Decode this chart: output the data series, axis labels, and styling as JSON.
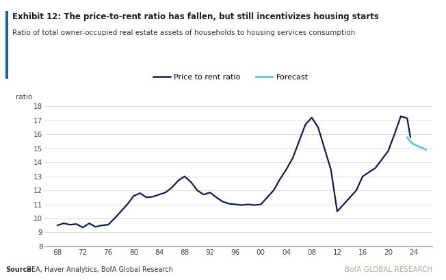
{
  "title_bold": "Exhibit 12: The price-to-rent ratio has fallen, but still incentivizes housing starts",
  "subtitle": "Ratio of total owner-occupied real estate assets of households to housing services consumption",
  "ylabel": "ratio",
  "ylim": [
    8,
    18
  ],
  "yticks": [
    8,
    9,
    10,
    11,
    12,
    13,
    14,
    15,
    16,
    17,
    18
  ],
  "xtick_labels": [
    "68",
    "72",
    "76",
    "80",
    "84",
    "88",
    "92",
    "96",
    "00",
    "04",
    "08",
    "12",
    "16",
    "20",
    "24"
  ],
  "source_bold": "Source:",
  "source_rest": " BEA, Haver Analytics, BofA Global Research",
  "watermark": "BofA GLOBAL RESEARCH",
  "legend_items": [
    "Price to rent ratio",
    "Forecast"
  ],
  "line_color": "#0d1952",
  "forecast_color": "#5bc8e8",
  "background_color": "#ffffff",
  "title_color": "#1a1a1a",
  "subtitle_color": "#333333",
  "blue_bar_color": "#1a5fa8",
  "axis_color": "#888888",
  "grid_color": "#d0d0d0",
  "source_color": "#333333",
  "watermark_color": "#b0a898",
  "price_to_rent_x": [
    68,
    69,
    70,
    71,
    72,
    73,
    74,
    75,
    76,
    77,
    78,
    79,
    80,
    81,
    82,
    83,
    84,
    85,
    86,
    87,
    88,
    89,
    90,
    91,
    92,
    93,
    94,
    95,
    96,
    97,
    98,
    99,
    100,
    101,
    102,
    103,
    104,
    105,
    106,
    107,
    108,
    109,
    110,
    111,
    112,
    113,
    114,
    115,
    116,
    117,
    118,
    119,
    120,
    121,
    122,
    123,
    123.5
  ],
  "price_to_rent_y": [
    9.5,
    9.65,
    9.55,
    9.6,
    9.35,
    9.65,
    9.4,
    9.5,
    9.55,
    10.0,
    10.5,
    11.0,
    11.6,
    11.8,
    11.5,
    11.55,
    11.7,
    11.85,
    12.2,
    12.7,
    13.0,
    12.6,
    12.0,
    11.7,
    11.85,
    11.5,
    11.2,
    11.05,
    11.0,
    10.95,
    11.0,
    10.95,
    11.0,
    11.5,
    12.0,
    12.8,
    13.5,
    14.3,
    15.5,
    16.7,
    17.2,
    16.5,
    15.0,
    13.5,
    10.5,
    11.0,
    11.5,
    12.0,
    13.0,
    13.3,
    13.6,
    14.2,
    14.8,
    16.0,
    17.3,
    17.15,
    15.8
  ],
  "forecast_x": [
    123.0,
    123.5,
    124,
    125,
    126
  ],
  "forecast_y": [
    15.8,
    15.5,
    15.3,
    15.1,
    14.9
  ],
  "xlim_low": 66,
  "xlim_high": 127,
  "xtick_positions": [
    68,
    72,
    76,
    80,
    84,
    88,
    92,
    96,
    100,
    104,
    108,
    112,
    116,
    120,
    124
  ]
}
